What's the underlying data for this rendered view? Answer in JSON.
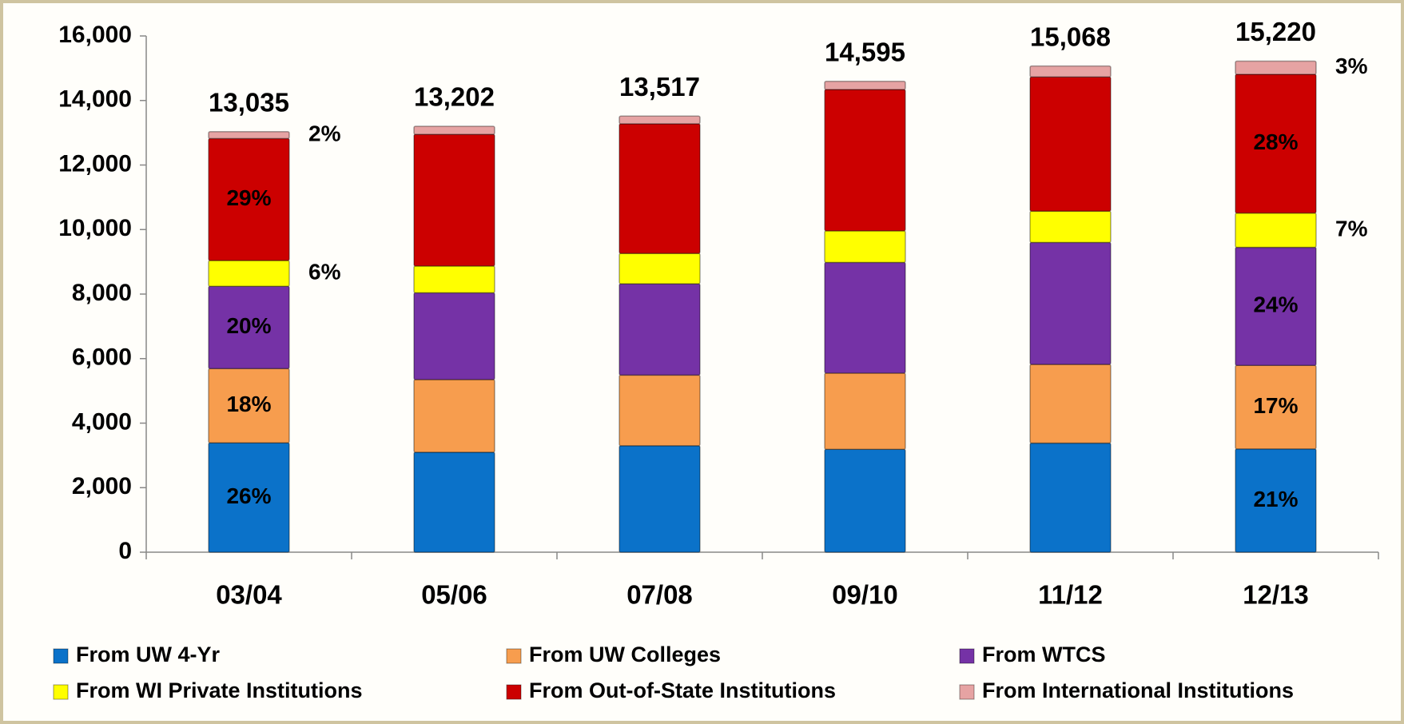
{
  "chart_data": {
    "type": "stacked_bar",
    "categories": [
      "03/04",
      "05/06",
      "07/08",
      "09/10",
      "11/12",
      "12/13"
    ],
    "series": [
      {
        "name": "From UW 4-Yr",
        "color": "#0b72c9",
        "values": [
          3390,
          3100,
          3300,
          3190,
          3380,
          3200
        ],
        "percent_labels": [
          "26%",
          null,
          null,
          null,
          null,
          "21%"
        ],
        "label_position": "inside",
        "label_color": "#ffffff"
      },
      {
        "name": "From UW Colleges",
        "color": "#f79d4e",
        "values": [
          2300,
          2250,
          2190,
          2360,
          2440,
          2590
        ],
        "percent_labels": [
          "18%",
          null,
          null,
          null,
          null,
          "17%"
        ],
        "label_position": "inside",
        "label_color": "#ffffff"
      },
      {
        "name": "From WTCS",
        "color": "#7532a6",
        "values": [
          2550,
          2690,
          2830,
          3430,
          3780,
          3660
        ],
        "percent_labels": [
          "20%",
          null,
          null,
          null,
          null,
          "24%"
        ],
        "label_position": "inside",
        "label_color": "#ffffff"
      },
      {
        "name": "From WI Private Institutions",
        "color": "#ffff00",
        "values": [
          800,
          830,
          940,
          980,
          970,
          1060
        ],
        "percent_labels": [
          "6%",
          null,
          null,
          null,
          null,
          "7%"
        ],
        "label_position": "outside",
        "label_color": "#000000"
      },
      {
        "name": "From Out-of-State Institutions",
        "color": "#cc0000",
        "values": [
          3780,
          4080,
          4020,
          4380,
          4160,
          4300
        ],
        "percent_labels": [
          "29%",
          null,
          null,
          null,
          null,
          "28%"
        ],
        "label_position": "inside",
        "label_color": "#ffffff"
      },
      {
        "name": "From International Institutions",
        "color": "#e6a3a3",
        "values": [
          215,
          252,
          237,
          255,
          338,
          410
        ],
        "percent_labels": [
          "2%",
          null,
          null,
          null,
          null,
          "3%"
        ],
        "label_position": "outside",
        "label_color": "#000000"
      }
    ],
    "totals": [
      13035,
      13202,
      13517,
      14595,
      15068,
      15220
    ],
    "total_labels": [
      "13,035",
      "13,202",
      "13,517",
      "14,595",
      "15,068",
      "15,220"
    ],
    "ylim": [
      0,
      16000
    ],
    "yticks": [
      0,
      {
        "value": 2000,
        "label": "2,000"
      },
      {
        "value": 4000,
        "label": "4,000"
      },
      {
        "value": 6000,
        "label": "6,000"
      },
      {
        "value": 8000,
        "label": "8,000"
      },
      {
        "value": 10000,
        "label": "10,000"
      },
      {
        "value": 12000,
        "label": "12,000"
      },
      {
        "value": 14000,
        "label": "14,000"
      },
      {
        "value": 16000,
        "label": "16,000"
      }
    ],
    "grid": false
  }
}
